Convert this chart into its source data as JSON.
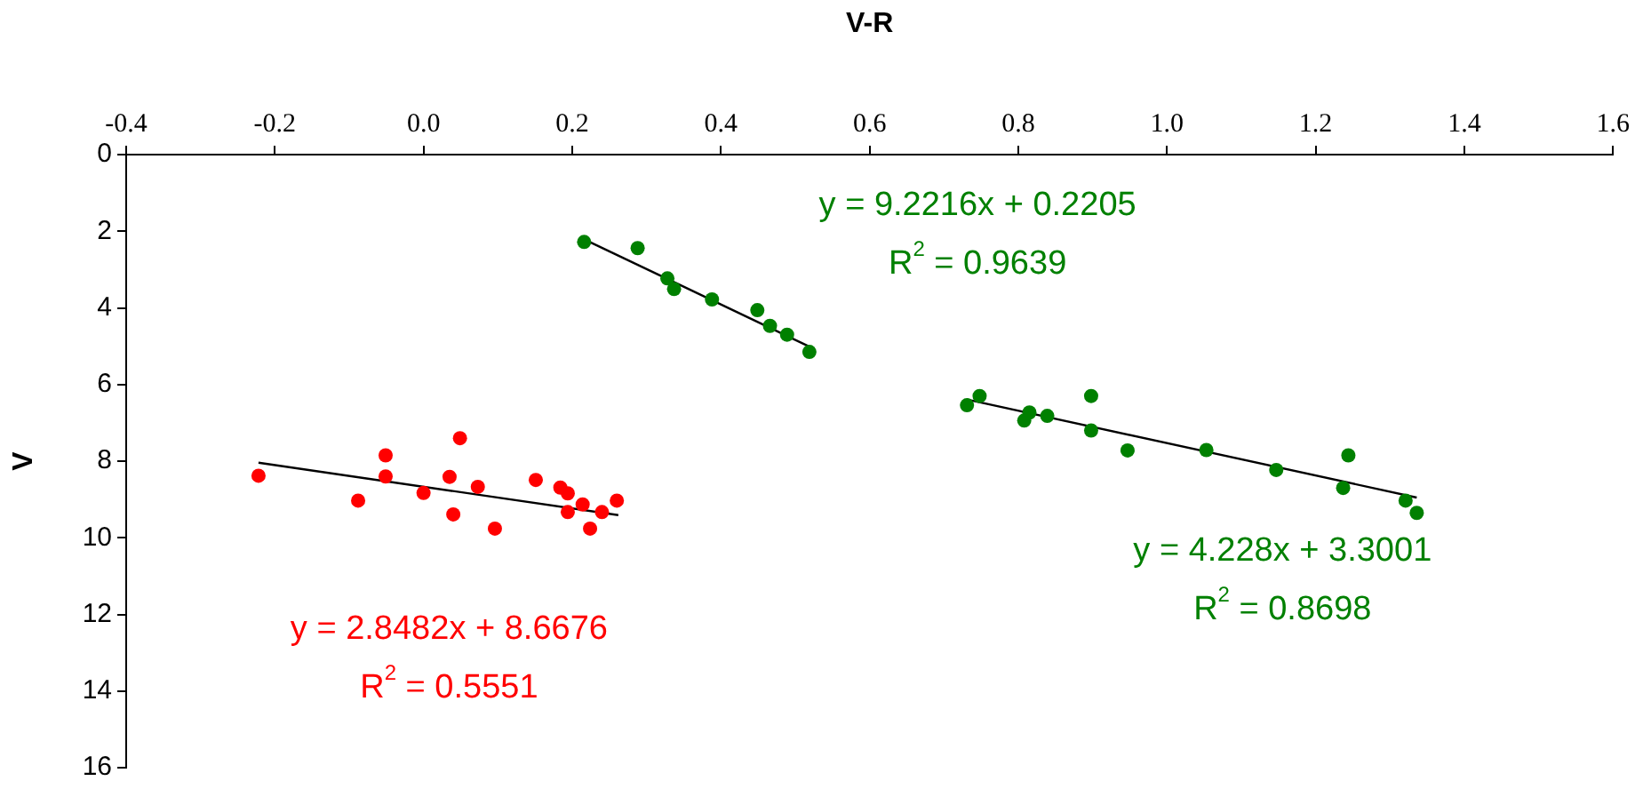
{
  "chart_data": {
    "type": "scatter",
    "xlabel": "V-R",
    "ylabel": "V",
    "xlim": [
      -0.4,
      1.6
    ],
    "xticks": [
      -0.4,
      -0.2,
      {
        "value": 0,
        "label": "0.0"
      },
      0.2,
      0.4,
      0.6,
      0.8,
      {
        "value": 1,
        "label": "1.0"
      },
      1.2,
      1.4,
      1.6
    ],
    "ylim": [
      16,
      0
    ],
    "yticks": [
      0,
      2,
      4,
      6,
      8,
      10,
      12,
      14,
      16
    ],
    "grid": false,
    "legend": false,
    "marker": "circle",
    "series": [
      {
        "color": "#ff0000",
        "x": [
          -0.222,
          -0.088,
          -0.051,
          -0.051,
          0.0,
          0.035,
          0.04,
          0.049,
          0.073,
          0.096,
          0.151,
          0.184,
          0.194,
          0.194,
          0.214,
          0.224,
          0.24,
          0.26
        ],
        "values": [
          8.38,
          9.03,
          7.85,
          8.4,
          8.83,
          8.41,
          9.39,
          7.4,
          8.67,
          9.76,
          8.49,
          8.69,
          8.84,
          9.33,
          9.13,
          9.76,
          9.33,
          9.03
        ]
      },
      {
        "color": "#008000",
        "x": [
          0.216,
          0.288,
          0.328,
          0.337,
          0.388,
          0.449,
          0.466,
          0.489,
          0.519,
          0.731,
          0.748,
          0.808,
          0.815,
          0.839,
          0.898,
          0.898,
          0.947,
          1.053,
          1.147,
          1.244,
          1.237,
          1.321,
          1.336
        ],
        "values": [
          2.28,
          2.44,
          3.23,
          3.51,
          3.78,
          4.06,
          4.47,
          4.7,
          5.15,
          6.54,
          6.3,
          6.94,
          6.73,
          6.82,
          6.3,
          7.2,
          7.72,
          7.71,
          8.23,
          7.85,
          8.7,
          9.03,
          9.35
        ]
      },
      {
        "type": "line",
        "marker": "none",
        "color": "#000000",
        "x": [
          -0.222,
          0.262
        ],
        "values": [
          8.04,
          9.41
        ]
      },
      {
        "type": "line",
        "marker": "none",
        "color": "#000000",
        "x": [
          0.216,
          0.519
        ],
        "values": [
          2.21,
          5.01
        ]
      },
      {
        "type": "line",
        "marker": "none",
        "color": "#000000",
        "x": [
          0.731,
          1.336
        ],
        "values": [
          6.39,
          8.95
        ]
      }
    ],
    "annotations": [
      "y = 2.8482x + 8.6676",
      "R$^{2}$ = 0.5551",
      "y = 9.2216x + 0.2205",
      "R$^{2}$ = 0.9639",
      "y = 4.228x + 3.3001",
      "R$^{2}$ = 0.8698"
    ]
  }
}
